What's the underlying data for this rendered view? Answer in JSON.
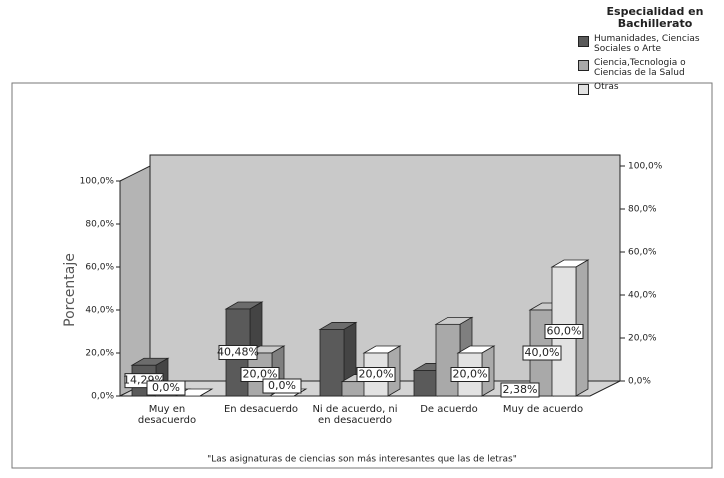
{
  "chart_data": {
    "type": "bar",
    "categories": [
      "Muy en desacuerdo",
      "En desacuerdo",
      "Ni de acuerdo, ni en desacuerdo",
      "De acuerdo",
      "Muy de acuerdo"
    ],
    "series": [
      {
        "name": "Humanidades, Ciencias Sociales o Arte",
        "color": "#5a5a5a",
        "values": [
          14.29,
          40.48,
          30.95,
          11.9,
          2.38
        ],
        "value_labels": [
          "14,29%",
          "40,48%",
          null,
          null,
          "2,38%"
        ]
      },
      {
        "name": "Ciencia,Tecnologia o Ciencias de la Salud",
        "color": "#a9a9a9",
        "values": [
          0,
          20,
          6.67,
          33.33,
          40
        ],
        "value_labels": [
          "0,0%",
          "20,0%",
          null,
          null,
          "40,0%"
        ]
      },
      {
        "name": "Otras",
        "color": "#e2e2e2",
        "values": [
          0,
          0,
          20,
          20,
          60
        ],
        "value_labels": [
          null,
          "0,0%",
          "20,0%",
          "20,0%",
          "60,0%"
        ]
      }
    ],
    "ylim": [
      0,
      100
    ],
    "yticks": [
      {
        "value": 0,
        "label": "0,0%"
      },
      {
        "value": 20,
        "label": "20,0%"
      },
      {
        "value": 40,
        "label": "40,0%"
      },
      {
        "value": 60,
        "label": "60,0%"
      },
      {
        "value": 80,
        "label": "80,0%"
      },
      {
        "value": 100,
        "label": "100,0%"
      }
    ],
    "y_label": "Porcentaje",
    "x_label": "\"Las asignaturas de ciencias son más interesantes que las de letras\"",
    "legend_title": "Especialidad en Bachillerato",
    "legend_position": "top-right"
  }
}
